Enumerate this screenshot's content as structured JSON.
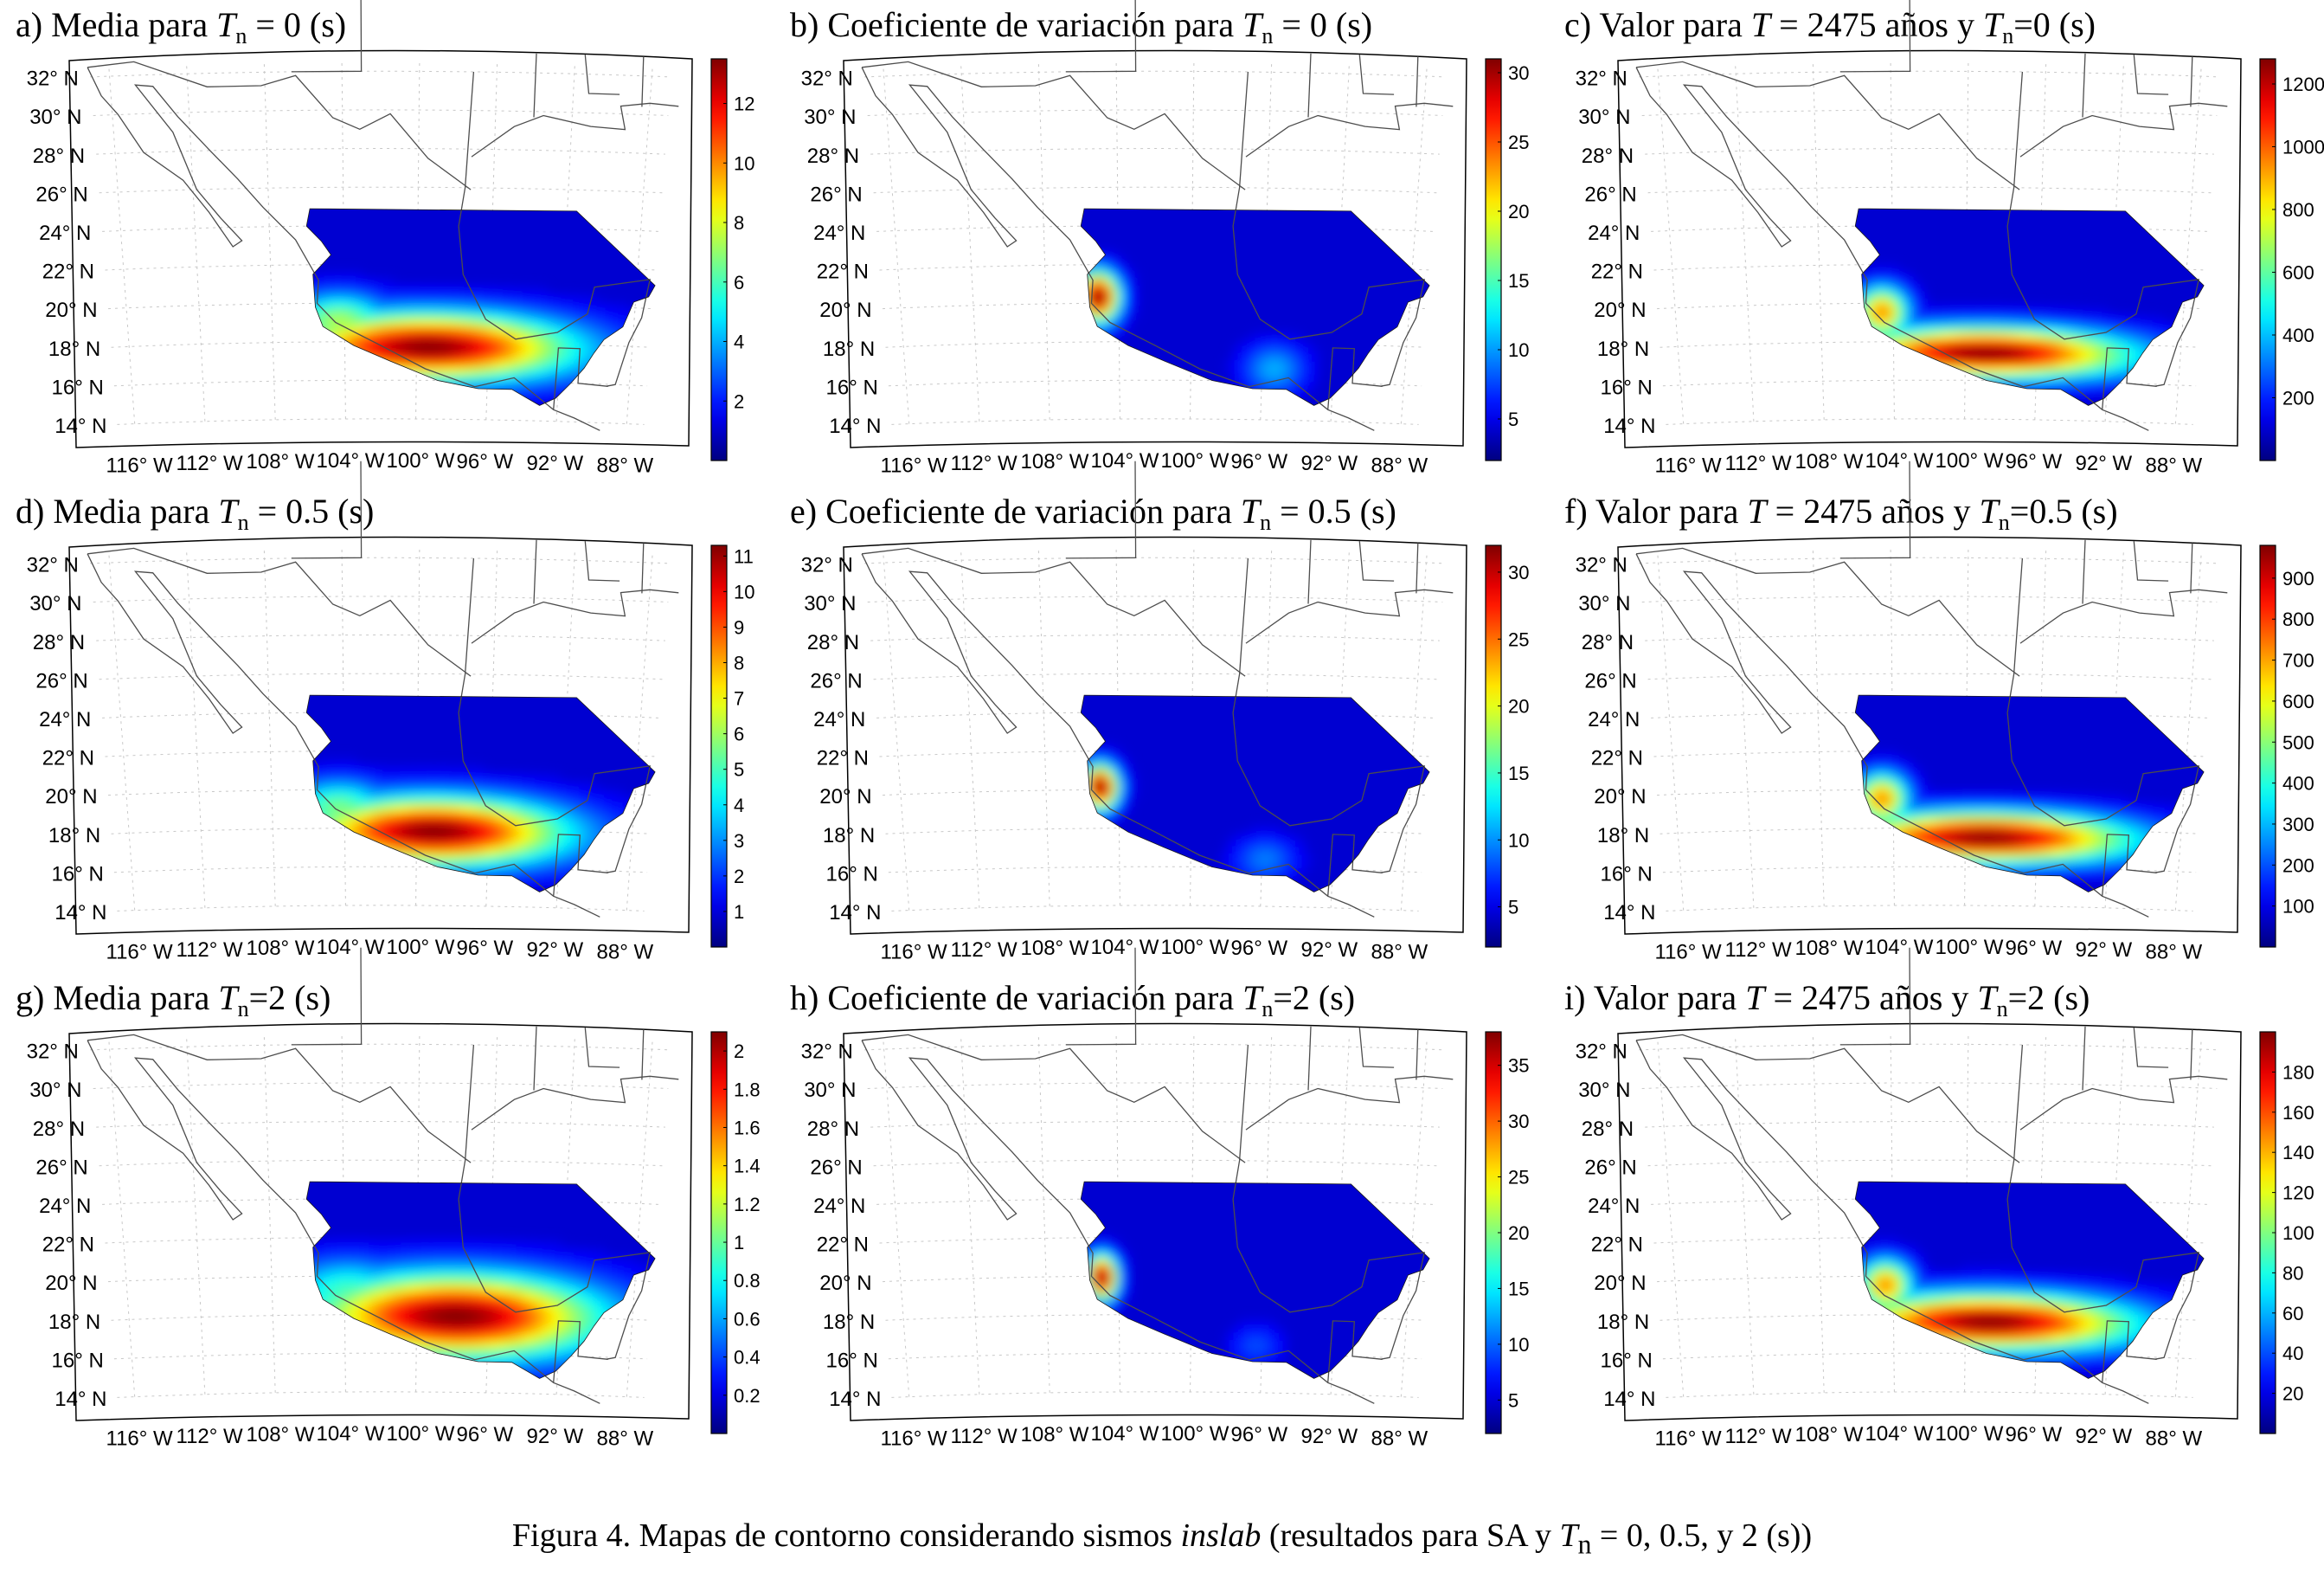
{
  "chart_data": [
    {
      "type": "heatmap",
      "id": "a",
      "title": "a) Media para T_n = 0 (s)",
      "title_parts": {
        "prefix": "a) Media para ",
        "italic": "T",
        "sub": "n",
        "suffix": " = 0 (s)"
      },
      "colorbar": {
        "ticks": [
          "2",
          "4",
          "6",
          "8",
          "10",
          "12"
        ],
        "range": [
          0,
          13.5
        ]
      },
      "hotspots": [
        {
          "lon": -99.5,
          "lat": 17.6,
          "sx": 5.5,
          "sy": 1.2,
          "value": 1.0
        },
        {
          "lon": -104.5,
          "lat": 18.9,
          "sx": 2.0,
          "sy": 1.0,
          "value": 0.55
        }
      ]
    },
    {
      "type": "heatmap",
      "id": "b",
      "title": "b) Coeficiente de variación para T_n = 0 (s)",
      "title_parts": {
        "prefix": "b) Coeficiente de variación para ",
        "italic": "T",
        "sub": "n",
        "suffix": " = 0 (s)"
      },
      "colorbar": {
        "ticks": [
          "5",
          "10",
          "15",
          "20",
          "25",
          "30"
        ],
        "range": [
          2,
          31
        ]
      },
      "hotspots": [
        {
          "lon": -105.3,
          "lat": 20.2,
          "sx": 0.8,
          "sy": 0.9,
          "value": 1.0
        },
        {
          "lon": -95.5,
          "lat": 16.5,
          "sx": 1.2,
          "sy": 0.9,
          "value": 0.3
        }
      ]
    },
    {
      "type": "heatmap",
      "id": "c",
      "title": "c) Valor para T = 2475 años y T_n=0 (s)",
      "title_parts": {
        "prefix": "c) Valor para ",
        "italic": "T",
        "mid": " = 2475 años y ",
        "italic2": "T",
        "sub": "n",
        "suffix": "=0 (s)"
      },
      "colorbar": {
        "ticks": [
          "200",
          "400",
          "600",
          "800",
          "1000",
          "1200"
        ],
        "range": [
          0,
          1280
        ]
      },
      "hotspots": [
        {
          "lon": -99.0,
          "lat": 17.3,
          "sx": 5.5,
          "sy": 0.9,
          "value": 1.0
        },
        {
          "lon": -104.8,
          "lat": 19.4,
          "sx": 1.0,
          "sy": 0.9,
          "value": 0.75
        }
      ]
    },
    {
      "type": "heatmap",
      "id": "d",
      "title": "d) Media para T_n = 0.5 (s)",
      "title_parts": {
        "prefix": "d) Media para ",
        "italic": "T",
        "sub": "n",
        "suffix": " = 0.5 (s)"
      },
      "colorbar": {
        "ticks": [
          "1",
          "2",
          "3",
          "4",
          "5",
          "6",
          "7",
          "8",
          "9",
          "10",
          "11"
        ],
        "range": [
          0,
          11.3
        ]
      },
      "hotspots": [
        {
          "lon": -99.2,
          "lat": 17.7,
          "sx": 5.0,
          "sy": 1.2,
          "value": 1.0
        },
        {
          "lon": -104.5,
          "lat": 18.9,
          "sx": 2.0,
          "sy": 1.0,
          "value": 0.5
        }
      ]
    },
    {
      "type": "heatmap",
      "id": "e",
      "title": "e) Coeficiente de variación para T_n = 0.5 (s)",
      "title_parts": {
        "prefix": "e) Coeficiente de variación para ",
        "italic": "T",
        "sub": "n",
        "suffix": " = 0.5 (s)"
      },
      "colorbar": {
        "ticks": [
          "5",
          "10",
          "15",
          "20",
          "25",
          "30"
        ],
        "range": [
          2,
          32
        ]
      },
      "hotspots": [
        {
          "lon": -105.2,
          "lat": 20.0,
          "sx": 0.7,
          "sy": 0.8,
          "value": 1.0
        },
        {
          "lon": -96.0,
          "lat": 16.3,
          "sx": 1.2,
          "sy": 0.8,
          "value": 0.25
        }
      ]
    },
    {
      "type": "heatmap",
      "id": "f",
      "title": "f) Valor para T = 2475 años y T_n=0.5 (s)",
      "title_parts": {
        "prefix": "f) Valor para ",
        "italic": "T",
        "mid": " = 2475 años y ",
        "italic2": "T",
        "sub": "n",
        "suffix": "=0.5 (s)"
      },
      "colorbar": {
        "ticks": [
          "100",
          "200",
          "300",
          "400",
          "500",
          "600",
          "700",
          "800",
          "900"
        ],
        "range": [
          0,
          980
        ]
      },
      "hotspots": [
        {
          "lon": -99.0,
          "lat": 17.4,
          "sx": 5.5,
          "sy": 0.9,
          "value": 1.0
        },
        {
          "lon": -104.8,
          "lat": 19.4,
          "sx": 1.0,
          "sy": 0.9,
          "value": 0.75
        }
      ]
    },
    {
      "type": "heatmap",
      "id": "g",
      "title": "g) Media para T_n=2 (s)",
      "title_parts": {
        "prefix": "g) Media para ",
        "italic": "T",
        "sub": "n",
        "suffix": "=2 (s)"
      },
      "colorbar": {
        "ticks": [
          "0.2",
          "0.4",
          "0.6",
          "0.8",
          "1",
          "1.2",
          "1.4",
          "1.6",
          "1.8",
          "2"
        ],
        "range": [
          0,
          2.1
        ]
      },
      "hotspots": [
        {
          "lon": -98.0,
          "lat": 17.8,
          "sx": 5.5,
          "sy": 1.5,
          "value": 1.0
        },
        {
          "lon": -104.0,
          "lat": 19.0,
          "sx": 2.5,
          "sy": 1.2,
          "value": 0.45
        }
      ]
    },
    {
      "type": "heatmap",
      "id": "h",
      "title": "h) Coeficiente de variación para T_n=2 (s)",
      "title_parts": {
        "prefix": "h) Coeficiente de variación para ",
        "italic": "T",
        "sub": "n",
        "suffix": "=2 (s)"
      },
      "colorbar": {
        "ticks": [
          "5",
          "10",
          "15",
          "20",
          "25",
          "30",
          "35"
        ],
        "range": [
          2,
          38
        ]
      },
      "hotspots": [
        {
          "lon": -105.1,
          "lat": 19.8,
          "sx": 0.6,
          "sy": 0.8,
          "value": 1.0
        },
        {
          "lon": -96.5,
          "lat": 16.3,
          "sx": 1.0,
          "sy": 0.7,
          "value": 0.2
        }
      ]
    },
    {
      "type": "heatmap",
      "id": "i",
      "title": "i) Valor para T = 2475 años y T_n=2 (s)",
      "title_parts": {
        "prefix": "i) Valor para ",
        "italic": "T",
        "mid": " = 2475 años y ",
        "italic2": "T",
        "sub": "n",
        "suffix": "=2 (s)"
      },
      "colorbar": {
        "ticks": [
          "20",
          "40",
          "60",
          "80",
          "100",
          "120",
          "140",
          "160",
          "180"
        ],
        "range": [
          0,
          200
        ]
      },
      "hotspots": [
        {
          "lon": -98.8,
          "lat": 17.5,
          "sx": 5.5,
          "sy": 1.0,
          "value": 1.0
        },
        {
          "lon": -104.6,
          "lat": 19.4,
          "sx": 1.0,
          "sy": 0.9,
          "value": 0.75
        }
      ]
    }
  ],
  "axes": {
    "lat_ticks": [
      14,
      16,
      18,
      20,
      22,
      24,
      26,
      28,
      30,
      32
    ],
    "lon_ticks": [
      -116,
      -112,
      -108,
      -104,
      -100,
      -96,
      -92,
      -88
    ],
    "lat_labels": [
      "14° N",
      "16° N",
      "18° N",
      "20° N",
      "22° N",
      "24° N",
      "26° N",
      "28° N",
      "30° N",
      "32° N"
    ],
    "lon_labels": [
      "116° W",
      "112° W",
      "108° W",
      "104° W",
      "100° W",
      "96° W",
      "92° W",
      "88° W"
    ],
    "lat_range": [
      13.5,
      33.0
    ],
    "lon_range": [
      -118.0,
      -86.0
    ]
  },
  "colors": {
    "background": "#ffffff",
    "low": "#00008f",
    "high": "#800000",
    "land": "#4d4d4d",
    "grid": "#c8c8c8"
  },
  "caption": {
    "prefix": "Figura 4.  Mapas de contorno considerando sismos ",
    "italic": "inslab",
    "middle": " (resultados para SA y ",
    "italic2": "T",
    "sub": "n",
    "suffix": " = 0, 0.5, y 2 (s))"
  }
}
